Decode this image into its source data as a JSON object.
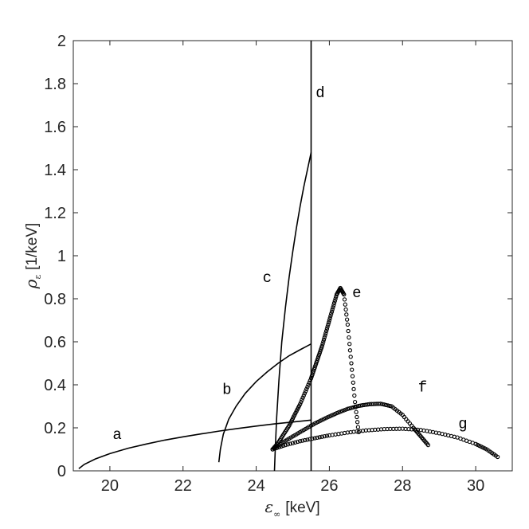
{
  "chart_data": {
    "type": "line",
    "xlabel": {
      "symbol": "ε",
      "subscript": "∞",
      "unit": "[keV]"
    },
    "ylabel": {
      "symbol": "ρ",
      "subscript": "ε",
      "unit": "[1/keV]"
    },
    "xlim": [
      19,
      31
    ],
    "ylim": [
      0,
      2
    ],
    "xticks": [
      "20",
      "22",
      "24",
      "26",
      "28",
      "30"
    ],
    "yticks": [
      "0",
      "0.2",
      "0.4",
      "0.6",
      "0.8",
      "1",
      "1.2",
      "1.4",
      "1.6",
      "1.8",
      "2"
    ],
    "grid": false,
    "series": [
      {
        "name": "a",
        "style": "line",
        "x": [
          19.15,
          19.3,
          19.6,
          20.0,
          20.5,
          21.0,
          21.5,
          22.0,
          22.5,
          23.0,
          23.5,
          24.0,
          24.5,
          25.0,
          25.5
        ],
        "y": [
          0.01,
          0.03,
          0.055,
          0.08,
          0.105,
          0.125,
          0.143,
          0.158,
          0.172,
          0.185,
          0.197,
          0.208,
          0.218,
          0.227,
          0.236
        ]
      },
      {
        "name": "b",
        "style": "line",
        "x": [
          22.98,
          23.02,
          23.1,
          23.25,
          23.45,
          23.7,
          24.0,
          24.3,
          24.6,
          24.9,
          25.2,
          25.5
        ],
        "y": [
          0.04,
          0.1,
          0.17,
          0.24,
          0.3,
          0.36,
          0.415,
          0.46,
          0.5,
          0.535,
          0.563,
          0.59
        ]
      },
      {
        "name": "c",
        "style": "line",
        "x": [
          24.5,
          24.52,
          24.56,
          24.62,
          24.7,
          24.8,
          24.9,
          25.0,
          25.1,
          25.2,
          25.3,
          25.4,
          25.5
        ],
        "y": [
          0.0,
          0.1,
          0.25,
          0.42,
          0.6,
          0.76,
          0.9,
          1.02,
          1.13,
          1.23,
          1.32,
          1.4,
          1.48
        ]
      },
      {
        "name": "d",
        "style": "line",
        "x": [
          25.5,
          25.5
        ],
        "y": [
          0.0,
          2.0
        ]
      },
      {
        "name": "e",
        "style": "markers",
        "x": [
          24.45,
          24.6,
          24.75,
          24.9,
          25.05,
          25.2,
          25.35,
          25.5,
          25.6,
          25.7,
          25.8,
          25.9,
          26.0,
          26.1,
          26.2,
          26.3,
          26.4,
          26.5,
          26.6,
          26.7,
          26.8
        ],
        "y": [
          0.1,
          0.13,
          0.17,
          0.21,
          0.26,
          0.31,
          0.37,
          0.43,
          0.48,
          0.53,
          0.58,
          0.64,
          0.7,
          0.76,
          0.82,
          0.85,
          0.82,
          0.68,
          0.5,
          0.32,
          0.18
        ]
      },
      {
        "name": "f",
        "style": "markers",
        "x": [
          24.45,
          24.7,
          25.0,
          25.3,
          25.6,
          25.9,
          26.2,
          26.5,
          26.8,
          27.1,
          27.4,
          27.7,
          28.0,
          28.3,
          28.5,
          28.7
        ],
        "y": [
          0.1,
          0.13,
          0.16,
          0.19,
          0.22,
          0.245,
          0.268,
          0.288,
          0.302,
          0.31,
          0.312,
          0.3,
          0.26,
          0.2,
          0.16,
          0.12
        ]
      },
      {
        "name": "g",
        "style": "markers",
        "x": [
          24.45,
          24.8,
          25.2,
          25.6,
          26.0,
          26.5,
          27.0,
          27.5,
          28.0,
          28.5,
          29.0,
          29.5,
          30.0,
          30.3,
          30.6
        ],
        "y": [
          0.1,
          0.12,
          0.138,
          0.152,
          0.165,
          0.178,
          0.188,
          0.194,
          0.196,
          0.19,
          0.175,
          0.155,
          0.125,
          0.1,
          0.065
        ]
      }
    ],
    "annotations": [
      {
        "text": "a",
        "x": 20.2,
        "y": 0.17
      },
      {
        "text": "b",
        "x": 23.2,
        "y": 0.38
      },
      {
        "text": "c",
        "x": 24.3,
        "y": 0.9
      },
      {
        "text": "d",
        "x": 25.75,
        "y": 1.76
      },
      {
        "text": "e",
        "x": 26.75,
        "y": 0.83
      },
      {
        "text": "f",
        "x": 28.55,
        "y": 0.39
      },
      {
        "text": "g",
        "x": 29.65,
        "y": 0.22
      }
    ]
  }
}
